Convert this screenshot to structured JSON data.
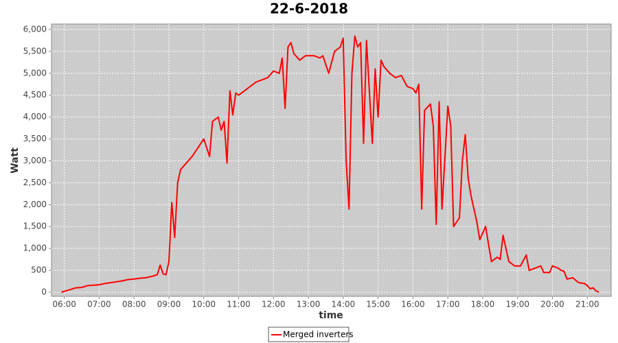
{
  "chart_data": {
    "type": "line",
    "title": "22-6-2018",
    "x_label": "time",
    "y_label": "Watt",
    "x": [
      "05:55",
      "06:00",
      "06:10",
      "06:20",
      "06:30",
      "06:40",
      "06:50",
      "07:00",
      "07:10",
      "07:20",
      "07:30",
      "07:40",
      "07:50",
      "08:00",
      "08:10",
      "08:20",
      "08:30",
      "08:40",
      "08:45",
      "08:50",
      "08:55",
      "09:00",
      "09:05",
      "09:10",
      "09:15",
      "09:20",
      "09:30",
      "09:40",
      "09:50",
      "10:00",
      "10:05",
      "10:10",
      "10:15",
      "10:20",
      "10:25",
      "10:30",
      "10:35",
      "10:40",
      "10:45",
      "10:50",
      "10:55",
      "11:00",
      "11:10",
      "11:20",
      "11:30",
      "11:40",
      "11:50",
      "12:00",
      "12:10",
      "12:15",
      "12:20",
      "12:25",
      "12:30",
      "12:35",
      "12:45",
      "12:55",
      "13:10",
      "13:20",
      "13:25",
      "13:35",
      "13:45",
      "13:55",
      "14:00",
      "14:05",
      "14:10",
      "14:15",
      "14:20",
      "14:25",
      "14:30",
      "14:35",
      "14:40",
      "14:45",
      "14:50",
      "14:55",
      "15:00",
      "15:05",
      "15:10",
      "15:20",
      "15:30",
      "15:40",
      "15:50",
      "16:00",
      "16:05",
      "16:10",
      "16:15",
      "16:20",
      "16:30",
      "16:35",
      "16:40",
      "16:45",
      "16:50",
      "17:00",
      "17:05",
      "17:10",
      "17:20",
      "17:25",
      "17:30",
      "17:35",
      "17:40",
      "17:50",
      "17:55",
      "18:05",
      "18:10",
      "18:15",
      "18:25",
      "18:30",
      "18:35",
      "18:40",
      "18:45",
      "18:55",
      "19:05",
      "19:15",
      "19:20",
      "19:30",
      "19:40",
      "19:45",
      "19:55",
      "20:00",
      "20:10",
      "20:15",
      "20:20",
      "20:25",
      "20:35",
      "20:45",
      "20:55",
      "21:00",
      "21:05",
      "21:10",
      "21:15",
      "21:20"
    ],
    "series": [
      {
        "name": "Merged inverters",
        "color": "#ff0000",
        "values": [
          0,
          20,
          60,
          100,
          110,
          150,
          160,
          170,
          200,
          220,
          240,
          260,
          290,
          300,
          320,
          330,
          360,
          400,
          620,
          420,
          400,
          700,
          2050,
          1250,
          2500,
          2800,
          2950,
          3100,
          3300,
          3500,
          3300,
          3100,
          3900,
          3950,
          4000,
          3700,
          3900,
          2950,
          4600,
          4050,
          4550,
          4500,
          4600,
          4700,
          4800,
          4850,
          4900,
          5050,
          5000,
          5350,
          4200,
          5600,
          5700,
          5450,
          5300,
          5400,
          5400,
          5350,
          5400,
          5000,
          5500,
          5600,
          5800,
          3000,
          1900,
          5000,
          5850,
          5600,
          5700,
          3400,
          5750,
          4600,
          3400,
          5100,
          4000,
          5300,
          5150,
          5000,
          4900,
          4950,
          4700,
          4650,
          4550,
          4750,
          1900,
          4150,
          4300,
          3800,
          1550,
          4350,
          1900,
          4250,
          3800,
          1500,
          1700,
          3000,
          3600,
          2600,
          2200,
          1600,
          1200,
          1500,
          1100,
          700,
          800,
          750,
          1300,
          1000,
          700,
          600,
          600,
          850,
          500,
          550,
          600,
          450,
          450,
          600,
          550,
          500,
          480,
          300,
          330,
          220,
          200,
          150,
          80,
          100,
          30,
          0
        ]
      }
    ],
    "xlim": [
      "05:38",
      "21:41"
    ],
    "xticks": [
      "06:00",
      "07:00",
      "08:00",
      "09:00",
      "10:00",
      "11:00",
      "12:00",
      "13:00",
      "14:00",
      "15:00",
      "16:00",
      "17:00",
      "18:00",
      "19:00",
      "20:00",
      "21:00"
    ],
    "ylim": [
      -94,
      6125
    ],
    "yticks": [
      0,
      500,
      {
        "value": 1000,
        "label": "1,000"
      },
      {
        "value": 1500,
        "label": "1,500"
      },
      {
        "value": 2000,
        "label": "2,000"
      },
      {
        "value": 2500,
        "label": "2,500"
      },
      {
        "value": 3000,
        "label": "3,000"
      },
      {
        "value": 3500,
        "label": "3,500"
      },
      {
        "value": 4000,
        "label": "4,000"
      },
      {
        "value": 4500,
        "label": "4,500"
      },
      {
        "value": 5000,
        "label": "5,000"
      },
      {
        "value": 5500,
        "label": "5,500"
      },
      {
        "value": 6000,
        "label": "6,000"
      }
    ],
    "grid": true,
    "legend": "bottom"
  }
}
